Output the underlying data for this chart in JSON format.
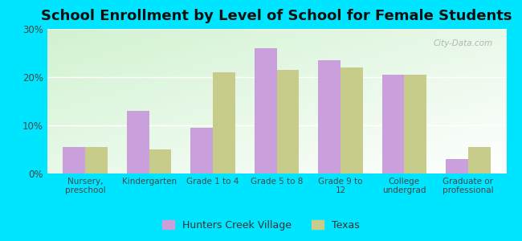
{
  "title": "School Enrollment by Level of School for Female Students",
  "categories": [
    "Nursery,\npreschool",
    "Kindergarten",
    "Grade 1 to 4",
    "Grade 5 to 8",
    "Grade 9 to\n12",
    "College\nundergrad",
    "Graduate or\nprofessional"
  ],
  "hunters_creek": [
    5.5,
    13.0,
    9.5,
    26.0,
    23.5,
    20.5,
    3.0
  ],
  "texas": [
    5.5,
    5.0,
    21.0,
    21.5,
    22.0,
    20.5,
    5.5
  ],
  "hcv_color": "#c9a0dc",
  "texas_color": "#c8cc8a",
  "background_outer": "#00e5ff",
  "ylim": [
    0,
    30
  ],
  "yticks": [
    0,
    10,
    20,
    30
  ],
  "ytick_labels": [
    "0%",
    "10%",
    "20%",
    "30%"
  ],
  "bar_width": 0.35,
  "title_fontsize": 13,
  "legend_label_hcv": "Hunters Creek Village",
  "legend_label_texas": "Texas",
  "watermark": "City-Data.com"
}
